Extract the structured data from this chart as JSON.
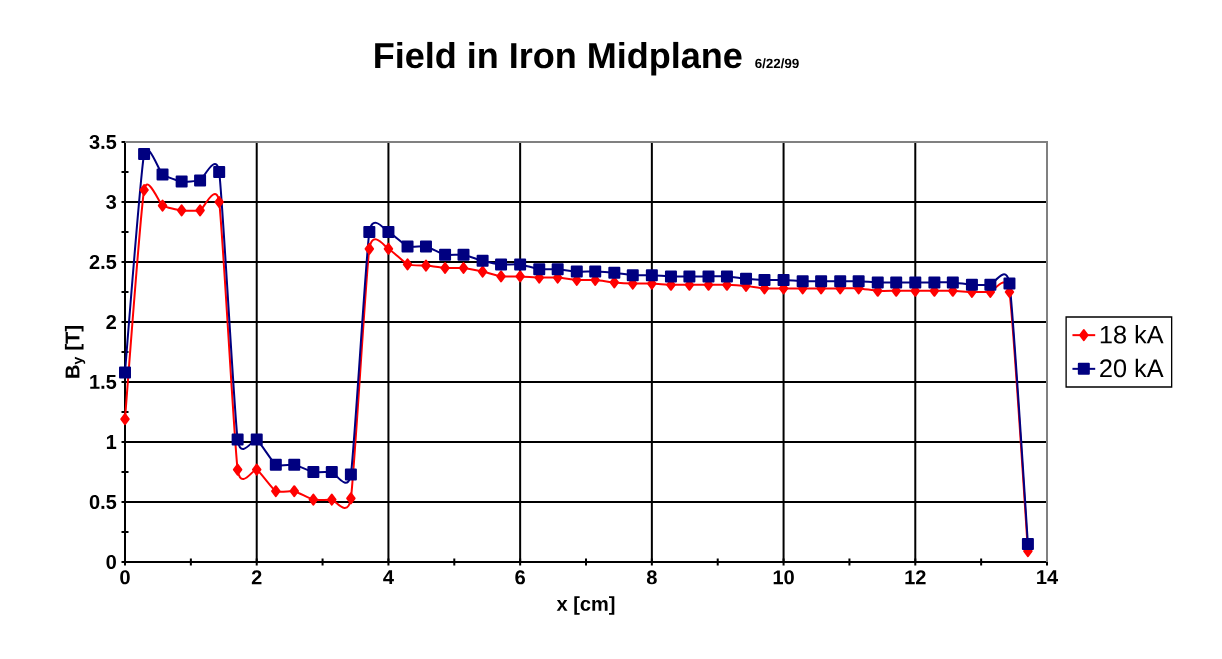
{
  "chart_data": {
    "type": "line",
    "title": "Field in Iron Midplane",
    "subtitle": "6/22/99",
    "xlabel": "x [cm]",
    "ylabel": "B$_{y}$ [T]",
    "x": [
      0,
      0.29,
      0.57,
      0.86,
      1.14,
      1.43,
      1.71,
      2,
      2.29,
      2.57,
      2.86,
      3.14,
      3.43,
      3.71,
      4,
      4.29,
      4.57,
      4.86,
      5.14,
      5.43,
      5.71,
      6,
      6.29,
      6.57,
      6.86,
      7.14,
      7.43,
      7.71,
      8,
      8.29,
      8.57,
      8.86,
      9.14,
      9.43,
      9.71,
      10,
      10.29,
      10.57,
      10.86,
      11.14,
      11.43,
      11.71,
      12,
      12.29,
      12.57,
      12.86,
      13.14,
      13.43,
      13.71
    ],
    "series": [
      {
        "name": "18 kA",
        "color": "#ff0000",
        "marker": "diamond",
        "values": [
          1.19,
          3.1,
          2.97,
          2.93,
          2.93,
          3.0,
          0.77,
          0.77,
          0.59,
          0.59,
          0.52,
          0.52,
          0.53,
          2.61,
          2.61,
          2.48,
          2.47,
          2.45,
          2.45,
          2.42,
          2.38,
          2.38,
          2.37,
          2.37,
          2.35,
          2.35,
          2.33,
          2.32,
          2.32,
          2.31,
          2.31,
          2.31,
          2.31,
          2.3,
          2.28,
          2.28,
          2.28,
          2.28,
          2.28,
          2.28,
          2.26,
          2.26,
          2.26,
          2.26,
          2.26,
          2.25,
          2.25,
          2.25,
          0.09
        ]
      },
      {
        "name": "20 kA",
        "color": "#000080",
        "marker": "square",
        "values": [
          1.58,
          3.4,
          3.23,
          3.17,
          3.18,
          3.25,
          1.02,
          1.02,
          0.81,
          0.81,
          0.75,
          0.75,
          0.73,
          2.75,
          2.75,
          2.63,
          2.63,
          2.56,
          2.56,
          2.51,
          2.48,
          2.48,
          2.44,
          2.44,
          2.42,
          2.42,
          2.41,
          2.39,
          2.39,
          2.38,
          2.38,
          2.38,
          2.38,
          2.36,
          2.35,
          2.35,
          2.34,
          2.34,
          2.34,
          2.34,
          2.33,
          2.33,
          2.33,
          2.33,
          2.33,
          2.31,
          2.31,
          2.32,
          0.15
        ]
      }
    ],
    "xlim": [
      0,
      14
    ],
    "ylim": [
      0,
      3.5
    ],
    "xticks": [
      0,
      2,
      4,
      6,
      8,
      10,
      12,
      14
    ],
    "yticks": [
      0,
      0.5,
      1,
      1.5,
      2,
      2.5,
      3,
      3.5
    ],
    "grid": true,
    "legend": "right",
    "line_style": "solid"
  }
}
